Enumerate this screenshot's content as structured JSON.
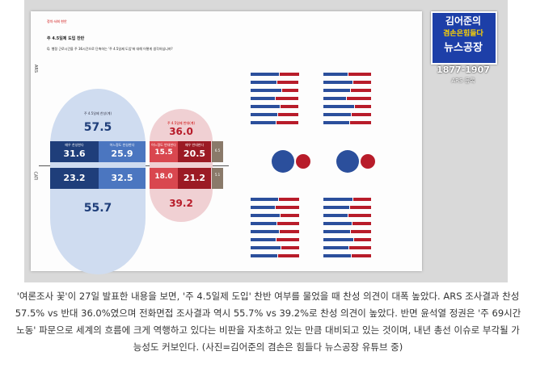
{
  "logo": {
    "line1": "김어준의",
    "line2": "겸손은힘들다",
    "line3": "뉴스공장",
    "phone": "1877-1907",
    "ars": "ARS 등록"
  },
  "report": {
    "section": "정치·사회 현안",
    "title": "주 4.5일제 도입 찬반",
    "question": "Q. 행정 근로시간을 주 36시간으로 단축하는 '주 4.5일제 도입'에 대해 어떻게 생각하십니까?",
    "ars_label": "ARS",
    "cati_label": "CATI",
    "agree_label": "주 4.5일제 찬성(계)",
    "disagree_label": "주 4.5일제 반대(계)",
    "strongly_agree_label": "매우 찬성한다",
    "somewhat_agree_label": "어느정도 찬성한다",
    "somewhat_disagree_label": "어느정도 반대한다",
    "strongly_disagree_label": "매우 반대한다",
    "ars": {
      "agree_total": "57.5",
      "disagree_total": "36.0",
      "strongly_agree": "31.6",
      "somewhat_agree": "25.9",
      "somewhat_disagree": "15.5",
      "strongly_disagree": "20.5",
      "unsure": "6.5"
    },
    "cati": {
      "agree_total": "55.7",
      "disagree_total": "39.2",
      "strongly_agree": "23.2",
      "somewhat_agree": "32.5",
      "somewhat_disagree": "18.0",
      "strongly_disagree": "21.2",
      "unsure": "5.1"
    }
  },
  "caption": "'여론조사 꽃'이 27일 발표한 내용을 보면, '주 4.5일제 도입' 찬반 여부를 물었을 때 찬성 의견이 대폭 높았다. ARS 조사결과 찬성 57.5% vs 반대 36.0%였으며 전화면접 조사결과 역시 55.7% vs 39.2%로 찬성 의견이 높았다. 반면 윤석열 정권은 '주 69시간 노동' 파문으로 세계의 흐름에 크게 역행하고 있다는 비판을 자초하고 있는 만큼 대비되고 있는 것이며, 내년 총선 이슈로 부각될 가능성도 커보인다. (사진=김어준의 겸손은 힘들다 뉴스공장 유튜브 중)"
}
